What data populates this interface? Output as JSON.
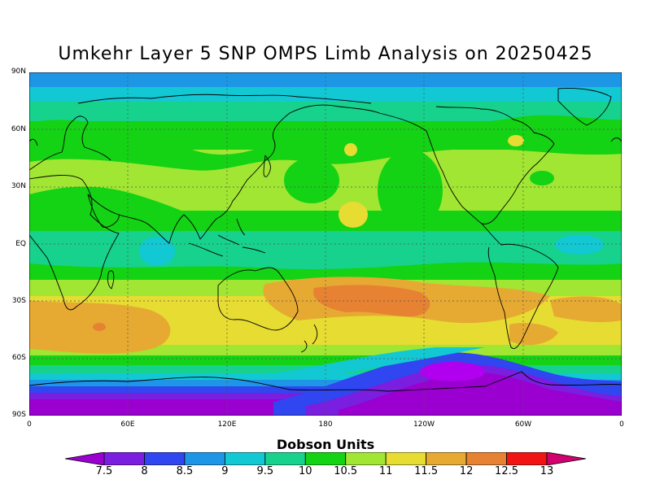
{
  "title": "Umkehr Layer 5 SNP OMPS Limb Analysis on 20250425",
  "lat_labels": [
    "90N",
    "60N",
    "30N",
    "EQ",
    "30S",
    "60S",
    "90S"
  ],
  "lon_labels": [
    "0",
    "60E",
    "120E",
    "180",
    "120W",
    "60W",
    "0"
  ],
  "colorbar": {
    "title": "Dobson Units",
    "labels": [
      "7.5",
      "8",
      "8.5",
      "9",
      "9.5",
      "10",
      "10.5",
      "11",
      "11.5",
      "12",
      "12.5",
      "13"
    ],
    "colors": [
      "#9a00d0",
      "#7a1ee0",
      "#2f46f0",
      "#1e96e6",
      "#12c8d2",
      "#16d28c",
      "#14d214",
      "#a0e632",
      "#e6dc32",
      "#e6aa32",
      "#e68232",
      "#f01414",
      "#d2006e"
    ]
  },
  "band_colors": {
    "c75": "#9a00d0",
    "c8": "#7a1ee0",
    "c85": "#2f46f0",
    "c9": "#1e96e6",
    "c95": "#12c8d2",
    "c10": "#16d28c",
    "c105": "#14d214",
    "c11": "#a0e632",
    "c115": "#e6dc32",
    "c12": "#e6aa32",
    "c125": "#e68232"
  }
}
